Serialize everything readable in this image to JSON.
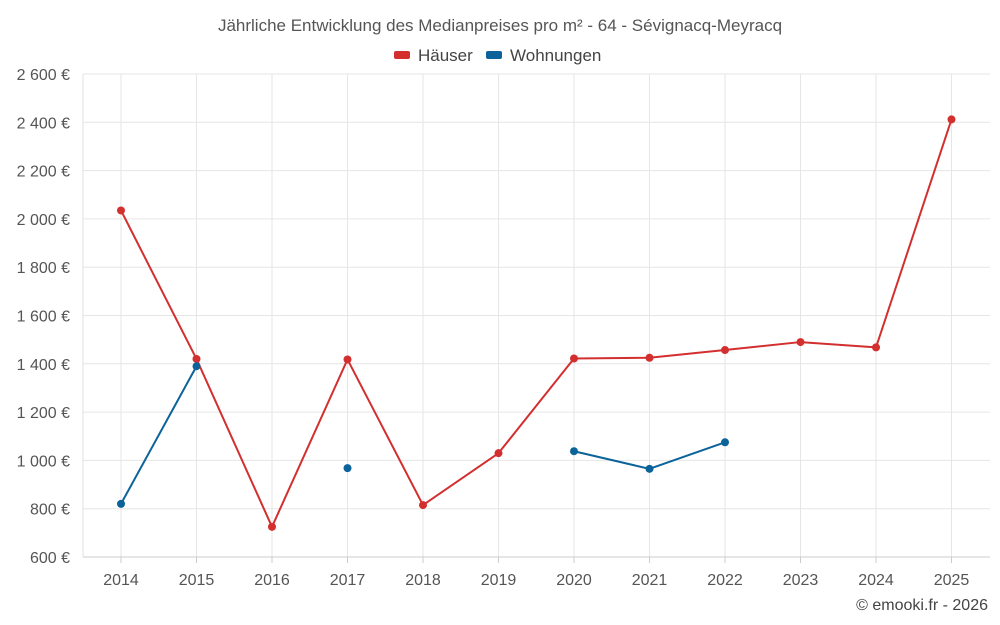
{
  "chart_data": {
    "type": "line",
    "title": "Jährliche Entwicklung des Medianpreises pro m² - 64 - Sévignacq-Meyracq",
    "categories": [
      "2014",
      "2015",
      "2016",
      "2017",
      "2018",
      "2019",
      "2020",
      "2021",
      "2022",
      "2023",
      "2024",
      "2025"
    ],
    "y_tick_labels": [
      "600 €",
      "800 €",
      "1 000 €",
      "1 200 €",
      "1 400 €",
      "1 600 €",
      "1 800 €",
      "2 000 €",
      "2 200 €",
      "2 400 €",
      "2 600 €"
    ],
    "y_ticks": [
      600,
      800,
      1000,
      1200,
      1400,
      1600,
      1800,
      2000,
      2200,
      2400,
      2600
    ],
    "ylim": [
      600,
      2600
    ],
    "grid": true,
    "legend_position": "top-center",
    "series": [
      {
        "name": "Häuser",
        "color": "#d32f2f",
        "values": [
          2035,
          1420,
          725,
          1418,
          815,
          1030,
          1422,
          1425,
          1457,
          1490,
          1468,
          2412
        ]
      },
      {
        "name": "Wohnungen",
        "color": "#0b639a",
        "values": [
          820,
          1390,
          null,
          968,
          null,
          null,
          1038,
          965,
          1075,
          null,
          null,
          null
        ]
      }
    ],
    "credit": "© emooki.fr - 2026"
  }
}
